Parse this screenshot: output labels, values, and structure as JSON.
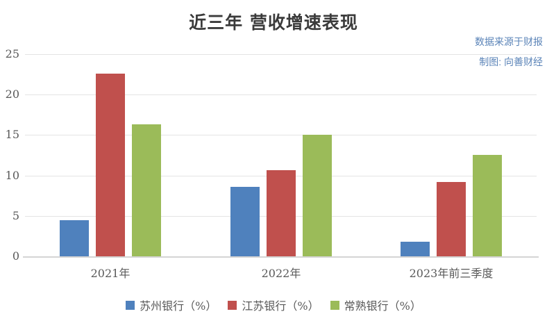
{
  "header": {
    "title": "近三年 营收增速表现"
  },
  "notes": {
    "source": "数据来源于财报",
    "credit": "制图: 向善财经"
  },
  "colors": {
    "suzhou_blue": "#4F81BD",
    "jiangsu_red": "#C0504D",
    "changshu_green": "#9BBB59",
    "note_blue": "#5B84B8",
    "gridline": "#E4E4E4",
    "axis_line": "#D4D4D4",
    "axis_text": "#595959",
    "title_text": "#3B3B3B"
  },
  "chart_data": {
    "type": "bar",
    "title": "近三年 营收增速表现",
    "categories": [
      "2021年",
      "2022年",
      "2023年前三季度"
    ],
    "series": [
      {
        "name": "苏州银行（%）",
        "color": "#4F81BD",
        "values": [
          4.49,
          8.62,
          1.81
        ]
      },
      {
        "name": "江苏银行（%）",
        "color": "#C0504D",
        "values": [
          22.58,
          10.66,
          9.15
        ]
      },
      {
        "name": "常熟银行（%）",
        "color": "#9BBB59",
        "values": [
          16.31,
          15.07,
          12.55
        ]
      }
    ],
    "xlabel": "",
    "ylabel": "",
    "ylim": [
      0,
      25
    ],
    "yticks": [
      0,
      5,
      10,
      15,
      20,
      25
    ],
    "grid": true,
    "legend_position": "bottom"
  }
}
